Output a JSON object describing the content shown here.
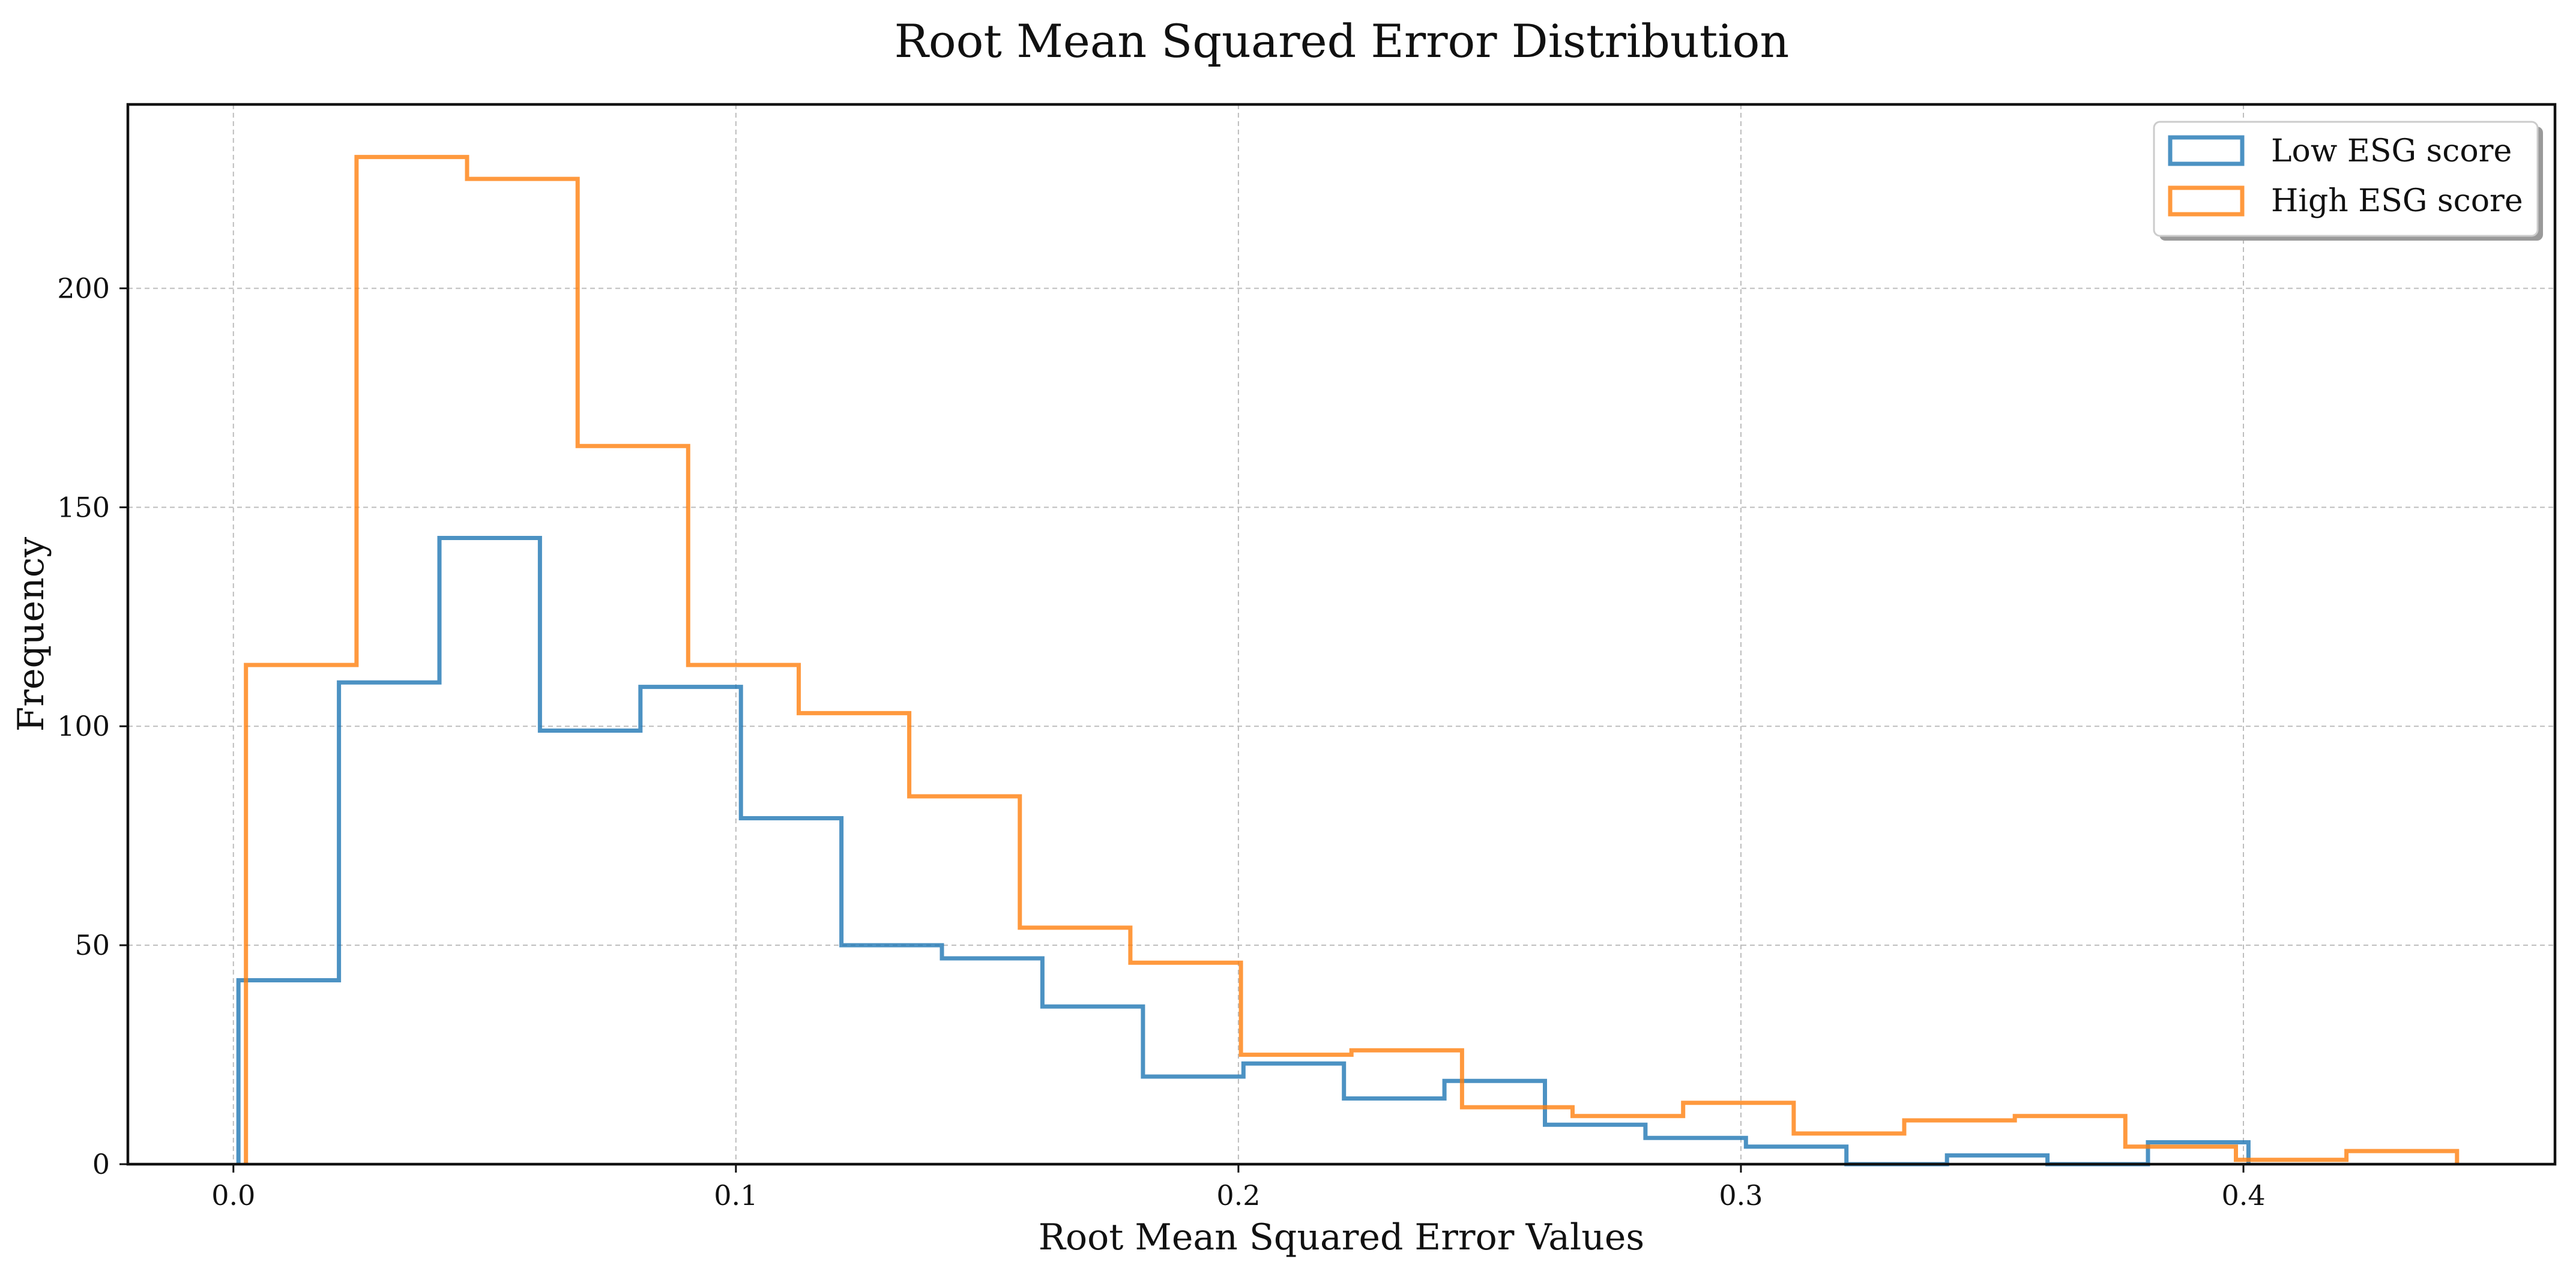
{
  "chart_data": {
    "type": "histogram",
    "title": "Root Mean Squared Error Distribution",
    "xlabel": "Root Mean Squared Error Values",
    "ylabel": "Frequency",
    "xlim": [
      -0.021,
      0.462
    ],
    "ylim": [
      0,
      242
    ],
    "x_ticks": [
      0.0,
      0.1,
      0.2,
      0.3,
      0.4
    ],
    "x_tick_labels": [
      "0.0",
      "0.1",
      "0.2",
      "0.3",
      "0.4"
    ],
    "y_ticks": [
      0,
      50,
      100,
      150,
      200
    ],
    "y_tick_labels": [
      "0",
      "50",
      "100",
      "150",
      "200"
    ],
    "grid": true,
    "legend_position": "top-right",
    "series": [
      {
        "name": "Low ESG score",
        "color": "#1f77b4",
        "bin_edges": [
          0.001,
          0.021,
          0.041,
          0.061,
          0.081,
          0.101,
          0.121,
          0.141,
          0.161,
          0.181,
          0.201,
          0.221,
          0.241,
          0.261,
          0.281,
          0.301,
          0.321,
          0.341,
          0.361,
          0.381,
          0.401
        ],
        "counts": [
          42,
          110,
          143,
          99,
          109,
          79,
          50,
          47,
          36,
          20,
          23,
          15,
          19,
          9,
          6,
          4,
          0,
          2,
          0,
          5
        ]
      },
      {
        "name": "High ESG score",
        "color": "#ff7f0e",
        "bin_edges": [
          0.0025,
          0.0245,
          0.0465,
          0.0685,
          0.0905,
          0.1125,
          0.1345,
          0.1565,
          0.1785,
          0.2005,
          0.2225,
          0.2445,
          0.2665,
          0.2885,
          0.3105,
          0.3325,
          0.3545,
          0.3765,
          0.3985,
          0.4205,
          0.4425
        ],
        "counts": [
          114,
          230,
          225,
          164,
          114,
          103,
          84,
          54,
          46,
          25,
          26,
          13,
          11,
          14,
          7,
          10,
          11,
          4,
          1,
          3
        ]
      }
    ]
  }
}
